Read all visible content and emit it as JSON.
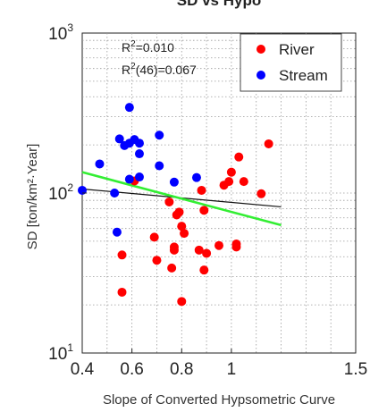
{
  "chart_data": {
    "type": "scatter",
    "title": "SD vs Hypo",
    "xlabel": "Slope of Converted Hypsometric Curve",
    "ylabel": "SD [ton/km²·Year]",
    "xlim": [
      0.4,
      1.5
    ],
    "ylim": [
      10,
      1000
    ],
    "yscale": "log",
    "grid": true,
    "legend_position": "top-right",
    "x_ticks": [
      {
        "value": 0.4,
        "label": "0.4"
      },
      {
        "value": 0.6,
        "label": "0.6"
      },
      {
        "value": 0.8,
        "label": "0.8"
      },
      {
        "value": 1.0,
        "label": "1"
      },
      {
        "value": 1.5,
        "label": "1.5"
      }
    ],
    "y_ticks": [
      {
        "value": 10,
        "base": "10",
        "exp": "1"
      },
      {
        "value": 100,
        "base": "10",
        "exp": "2"
      },
      {
        "value": 1000,
        "base": "10",
        "exp": "3"
      }
    ],
    "annotations": [
      {
        "pre": "R",
        "sup": "2",
        "post": "=0.010"
      },
      {
        "pre": "R",
        "sup": "2",
        "post": "(46)=0.067"
      }
    ],
    "series": [
      {
        "name": "River",
        "color": "#ff0000",
        "points": [
          [
            0.56,
            41
          ],
          [
            0.56,
            24
          ],
          [
            0.61,
            119
          ],
          [
            0.69,
            53
          ],
          [
            0.7,
            38
          ],
          [
            0.75,
            88
          ],
          [
            0.76,
            34
          ],
          [
            0.77,
            46
          ],
          [
            0.77,
            44
          ],
          [
            0.78,
            73
          ],
          [
            0.79,
            76
          ],
          [
            0.8,
            21
          ],
          [
            0.8,
            62
          ],
          [
            0.81,
            56
          ],
          [
            0.87,
            44
          ],
          [
            0.88,
            104
          ],
          [
            0.89,
            33
          ],
          [
            0.89,
            78
          ],
          [
            0.9,
            42
          ],
          [
            0.95,
            47
          ],
          [
            0.97,
            112
          ],
          [
            0.99,
            118
          ],
          [
            1.0,
            135
          ],
          [
            1.02,
            46
          ],
          [
            1.02,
            48
          ],
          [
            1.03,
            168
          ],
          [
            1.05,
            118
          ],
          [
            1.12,
            99
          ],
          [
            1.15,
            203
          ]
        ]
      },
      {
        "name": "Stream",
        "color": "#0000ff",
        "points": [
          [
            0.4,
            104
          ],
          [
            0.47,
            152
          ],
          [
            0.53,
            100
          ],
          [
            0.54,
            57
          ],
          [
            0.55,
            218
          ],
          [
            0.57,
            198
          ],
          [
            0.59,
            205
          ],
          [
            0.59,
            122
          ],
          [
            0.59,
            343
          ],
          [
            0.61,
            216
          ],
          [
            0.63,
            205
          ],
          [
            0.63,
            176
          ],
          [
            0.63,
            126
          ],
          [
            0.71,
            148
          ],
          [
            0.71,
            230
          ],
          [
            0.77,
            117
          ],
          [
            0.86,
            125
          ]
        ]
      }
    ],
    "fit_lines": [
      {
        "color": "#111111",
        "points": [
          [
            0.4,
            106
          ],
          [
            1.2,
            82
          ]
        ]
      },
      {
        "color": "#33ee33",
        "points": [
          [
            0.4,
            135
          ],
          [
            1.2,
            63
          ]
        ]
      }
    ]
  }
}
